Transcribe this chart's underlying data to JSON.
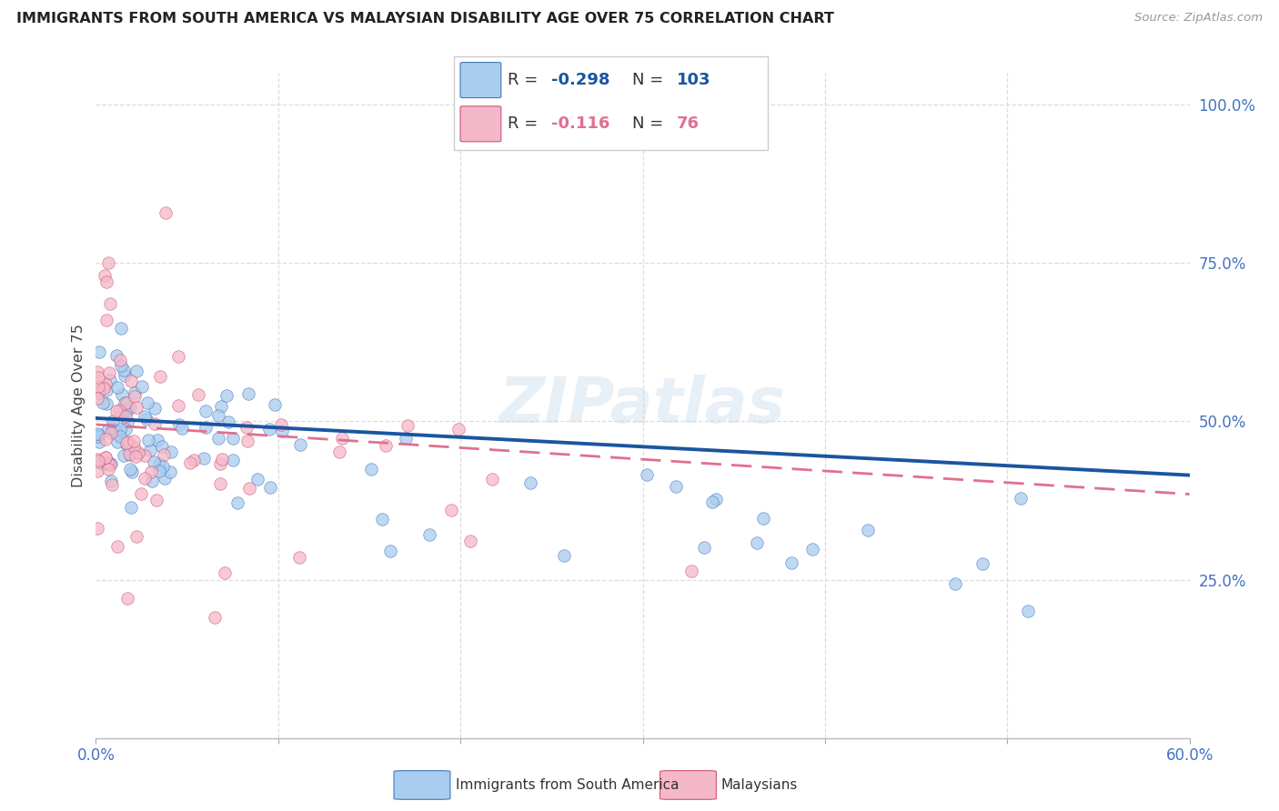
{
  "title": "IMMIGRANTS FROM SOUTH AMERICA VS MALAYSIAN DISABILITY AGE OVER 75 CORRELATION CHART",
  "source": "Source: ZipAtlas.com",
  "ylabel": "Disability Age Over 75",
  "xlim": [
    0.0,
    0.6
  ],
  "ylim": [
    0.0,
    1.05
  ],
  "blue_R": -0.298,
  "blue_N": 103,
  "pink_R": -0.116,
  "pink_N": 76,
  "blue_color": "#AACCEE",
  "pink_color": "#F5B8C8",
  "blue_line_color": "#1A55A0",
  "pink_line_color": "#E07090",
  "blue_edge_color": "#4477BB",
  "pink_edge_color": "#CC5577",
  "legend_label_blue": "Immigrants from South America",
  "legend_label_pink": "Malaysians",
  "grid_color": "#DDDDDD",
  "yticks": [
    0.25,
    0.5,
    0.75,
    1.0
  ],
  "ytick_labels": [
    "25.0%",
    "50.0%",
    "75.0%",
    "100.0%"
  ],
  "xtick_left_label": "0.0%",
  "xtick_right_label": "60.0%",
  "blue_trend_start": 0.505,
  "blue_trend_end": 0.415,
  "pink_trend_start": 0.495,
  "pink_trend_end": 0.385
}
